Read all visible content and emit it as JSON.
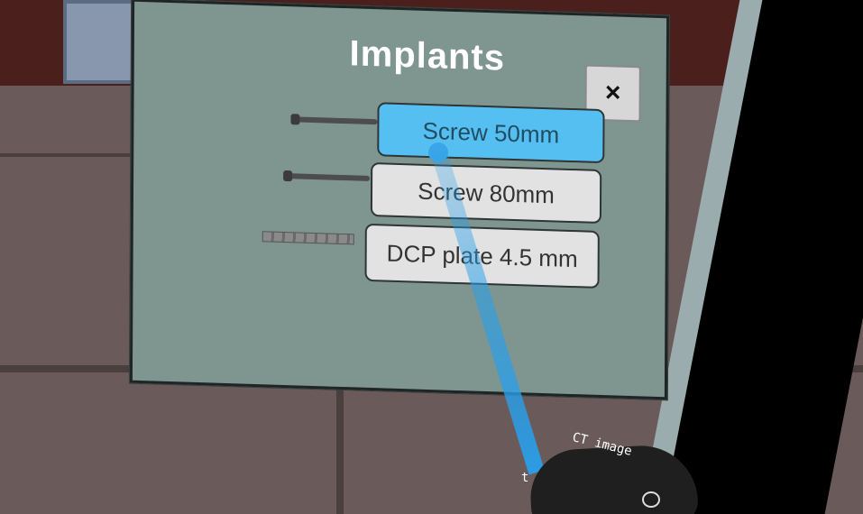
{
  "panel": {
    "title": "Implants",
    "close_label": "×"
  },
  "implants": [
    {
      "label": "Screw 50mm",
      "selected": true
    },
    {
      "label": "Screw 80mm",
      "selected": false
    },
    {
      "label": "DCP plate 4.5 mm",
      "selected": false
    }
  ],
  "controller_text": {
    "line1": "CT image",
    "line2": "t"
  },
  "colors": {
    "panel_bg": "#7e9590",
    "selected_button": "#56bff2",
    "button": "#e2e2e2",
    "ray": "#3aa5e8"
  }
}
